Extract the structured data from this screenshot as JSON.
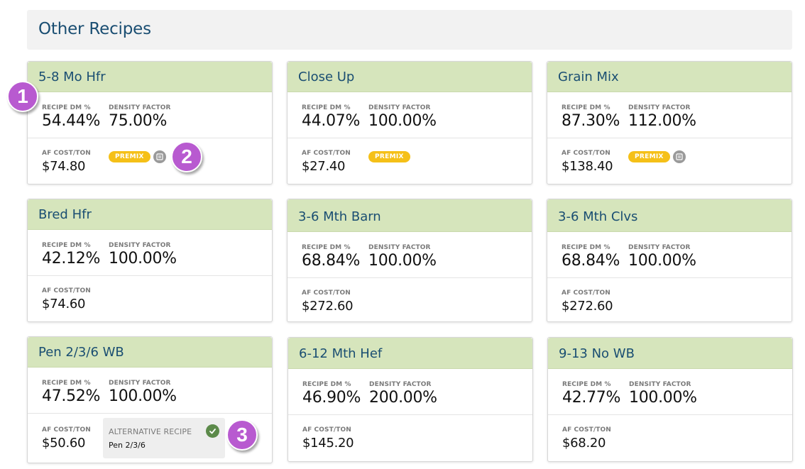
{
  "section_title": "Other Recipes",
  "labels": {
    "recipe_dm": "RECIPE DM %",
    "density_factor": "DENSITY FACTOR",
    "af_cost": "AF COST/TON",
    "premix": "PREMIX",
    "alternative_recipe": "ALTERNATIVE RECIPE"
  },
  "recipes": [
    {
      "name": "5-8 Mo Hfr",
      "recipe_dm": "54.44%",
      "density_factor": "75.00%",
      "af_cost": "$74.80",
      "premix": true,
      "doc_icon": true
    },
    {
      "name": "Close Up",
      "recipe_dm": "44.07%",
      "density_factor": "100.00%",
      "af_cost": "$27.40",
      "premix": true,
      "doc_icon": false
    },
    {
      "name": "Grain Mix",
      "recipe_dm": "87.30%",
      "density_factor": "112.00%",
      "af_cost": "$138.40",
      "premix": true,
      "doc_icon": true
    },
    {
      "name": "Bred Hfr",
      "recipe_dm": "42.12%",
      "density_factor": "100.00%",
      "af_cost": "$74.60"
    },
    {
      "name": "3-6 Mth Barn",
      "recipe_dm": "68.84%",
      "density_factor": "100.00%",
      "af_cost": "$272.60"
    },
    {
      "name": "3-6 Mth Clvs",
      "recipe_dm": "68.84%",
      "density_factor": "100.00%",
      "af_cost": "$272.60"
    },
    {
      "name": "Pen 2/3/6 WB",
      "recipe_dm": "47.52%",
      "density_factor": "100.00%",
      "af_cost": "$50.60",
      "alternative_recipe": "Pen 2/3/6"
    },
    {
      "name": "6-12 Mth Hef",
      "recipe_dm": "46.90%",
      "density_factor": "200.00%",
      "af_cost": "$145.20"
    },
    {
      "name": "9-13 No WB",
      "recipe_dm": "42.77%",
      "density_factor": "100.00%",
      "af_cost": "$68.20"
    }
  ],
  "callouts": [
    "1",
    "2",
    "3"
  ],
  "colors": {
    "header_green": "#d6e5bc",
    "title_blue": "#1a4e72",
    "premix_yellow": "#f5c018",
    "callout_purple": "#b85ad0",
    "check_green": "#5c8a4a"
  }
}
